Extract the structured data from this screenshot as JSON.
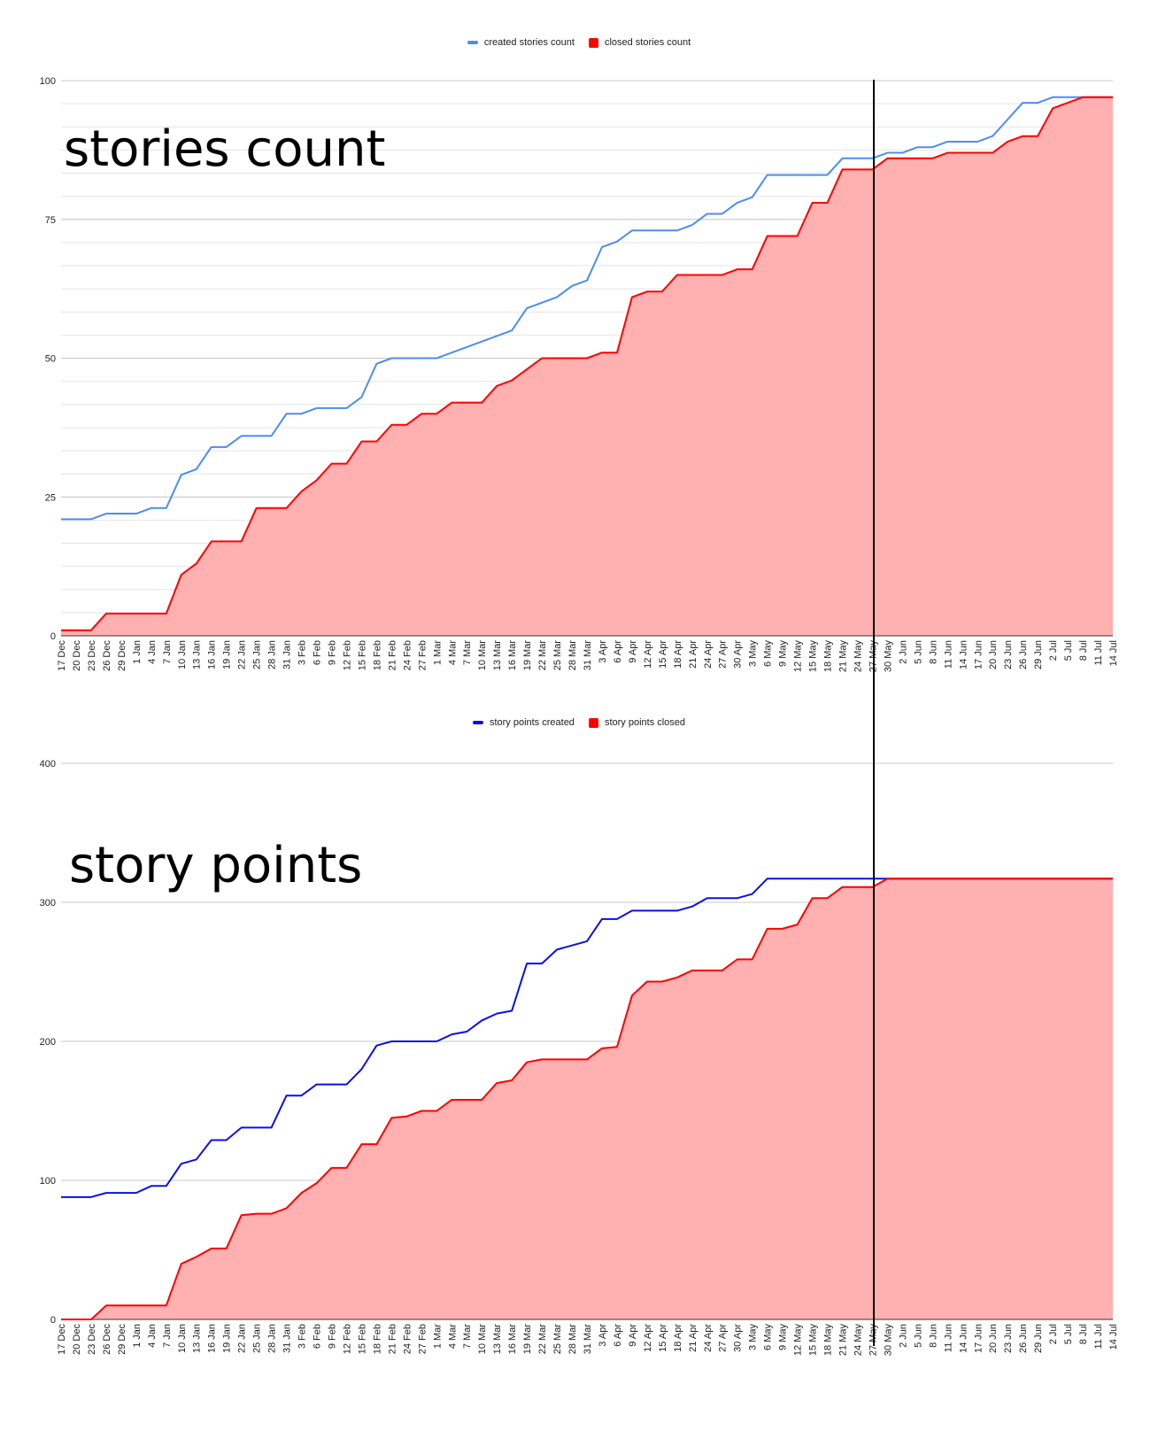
{
  "charts_meta": {
    "cutoff_label": "27 May",
    "colors": {
      "created_top": "#4a8ef0",
      "created_bottom": "#0a10e6",
      "closed_line": "#ff0000",
      "closed_fill": "#ffb0b0",
      "grid_major": "#c8c8c8",
      "grid_minor": "#e4e4e4",
      "cutoff_line": "#000000"
    }
  },
  "top": {
    "overlay_title": "stories count",
    "legend": [
      {
        "label": "created stories count",
        "type": "line",
        "color": "#4a8ef0"
      },
      {
        "label": "closed stories count",
        "type": "box",
        "color": "#ff0000"
      }
    ]
  },
  "bottom": {
    "overlay_title": "story points",
    "legend": [
      {
        "label": "story points created",
        "type": "line",
        "color": "#0a10e6"
      },
      {
        "label": "story points closed",
        "type": "box",
        "color": "#ff0000"
      }
    ]
  },
  "chart_data": [
    {
      "type": "area",
      "title": "stories count",
      "xlabel": "",
      "ylabel": "",
      "ylim": [
        0,
        100
      ],
      "yticks": [
        0,
        25,
        50,
        75,
        100
      ],
      "minor_grid_step": 4.1667,
      "grid": true,
      "legend_position": "top",
      "vertical_marker": "27 May",
      "categories": [
        "17 Dec",
        "20 Dec",
        "23 Dec",
        "26 Dec",
        "29 Dec",
        "1 Jan",
        "4 Jan",
        "7 Jan",
        "10 Jan",
        "13 Jan",
        "16 Jan",
        "19 Jan",
        "22 Jan",
        "25 Jan",
        "28 Jan",
        "31 Jan",
        "3 Feb",
        "6 Feb",
        "9 Feb",
        "12 Feb",
        "15 Feb",
        "18 Feb",
        "21 Feb",
        "24 Feb",
        "27 Feb",
        "1 Mar",
        "4 Mar",
        "7 Mar",
        "10 Mar",
        "13 Mar",
        "16 Mar",
        "19 Mar",
        "22 Mar",
        "25 Mar",
        "28 Mar",
        "31 Mar",
        "3 Apr",
        "6 Apr",
        "9 Apr",
        "12 Apr",
        "15 Apr",
        "18 Apr",
        "21 Apr",
        "24 Apr",
        "27 Apr",
        "30 Apr",
        "3 May",
        "6 May",
        "9 May",
        "12 May",
        "15 May",
        "18 May",
        "21 May",
        "24 May",
        "27 May",
        "30 May",
        "2 Jun",
        "5 Jun",
        "8 Jun",
        "11 Jun",
        "14 Jun",
        "17 Jun",
        "20 Jun",
        "23 Jun",
        "26 Jun",
        "29 Jun",
        "2 Jul",
        "5 Jul",
        "8 Jul",
        "11 Jul",
        "14 Jul"
      ],
      "series": [
        {
          "name": "created stories count",
          "style": "line",
          "values": [
            21,
            21,
            21,
            22,
            22,
            22,
            23,
            23,
            29,
            30,
            34,
            34,
            36,
            36,
            36,
            40,
            40,
            41,
            41,
            41,
            43,
            49,
            50,
            50,
            50,
            50,
            51,
            52,
            53,
            54,
            55,
            59,
            60,
            61,
            63,
            64,
            70,
            71,
            73,
            73,
            73,
            73,
            74,
            76,
            76,
            78,
            79,
            83,
            83,
            83,
            83,
            83,
            86,
            86,
            86,
            87,
            87,
            88,
            88,
            89,
            89,
            89,
            90,
            93,
            96,
            96,
            97,
            97,
            97,
            97,
            97
          ]
        },
        {
          "name": "closed stories count",
          "style": "area",
          "values": [
            1,
            1,
            1,
            4,
            4,
            4,
            4,
            4,
            11,
            13,
            17,
            17,
            17,
            23,
            23,
            23,
            26,
            28,
            31,
            31,
            35,
            35,
            38,
            38,
            40,
            40,
            42,
            42,
            42,
            45,
            46,
            48,
            50,
            50,
            50,
            50,
            51,
            51,
            61,
            62,
            62,
            65,
            65,
            65,
            65,
            66,
            66,
            72,
            72,
            72,
            78,
            78,
            84,
            84,
            84,
            86,
            86,
            86,
            86,
            87,
            87,
            87,
            87,
            89,
            90,
            90,
            95,
            96,
            97,
            97,
            97
          ]
        }
      ]
    },
    {
      "type": "area",
      "title": "story points",
      "xlabel": "",
      "ylabel": "",
      "ylim": [
        0,
        400
      ],
      "yticks": [
        0,
        100,
        200,
        300,
        400
      ],
      "grid": true,
      "legend_position": "top",
      "vertical_marker": "27 May",
      "categories": [
        "17 Dec",
        "20 Dec",
        "23 Dec",
        "26 Dec",
        "29 Dec",
        "1 Jan",
        "4 Jan",
        "7 Jan",
        "10 Jan",
        "13 Jan",
        "16 Jan",
        "19 Jan",
        "22 Jan",
        "25 Jan",
        "28 Jan",
        "31 Jan",
        "3 Feb",
        "6 Feb",
        "9 Feb",
        "12 Feb",
        "15 Feb",
        "18 Feb",
        "21 Feb",
        "24 Feb",
        "27 Feb",
        "1 Mar",
        "4 Mar",
        "7 Mar",
        "10 Mar",
        "13 Mar",
        "16 Mar",
        "19 Mar",
        "22 Mar",
        "25 Mar",
        "28 Mar",
        "31 Mar",
        "3 Apr",
        "6 Apr",
        "9 Apr",
        "12 Apr",
        "15 Apr",
        "18 Apr",
        "21 Apr",
        "24 Apr",
        "27 Apr",
        "30 Apr",
        "3 May",
        "6 May",
        "9 May",
        "12 May",
        "15 May",
        "18 May",
        "21 May",
        "24 May",
        "27 May",
        "30 May",
        "2 Jun",
        "5 Jun",
        "8 Jun",
        "11 Jun",
        "14 Jun",
        "17 Jun",
        "20 Jun",
        "23 Jun",
        "26 Jun",
        "29 Jun",
        "2 Jul",
        "5 Jul",
        "8 Jul",
        "11 Jul",
        "14 Jul"
      ],
      "series": [
        {
          "name": "story points created",
          "style": "line",
          "values": [
            88,
            88,
            88,
            91,
            91,
            91,
            96,
            96,
            112,
            115,
            129,
            129,
            138,
            138,
            138,
            161,
            161,
            169,
            169,
            169,
            180,
            197,
            200,
            200,
            200,
            200,
            205,
            207,
            215,
            220,
            222,
            256,
            256,
            266,
            269,
            272,
            288,
            288,
            294,
            294,
            294,
            294,
            297,
            303,
            303,
            303,
            306,
            317,
            317,
            317,
            317,
            317,
            317,
            317,
            317,
            317,
            317,
            317,
            317,
            317,
            317,
            317,
            317,
            317,
            317,
            317,
            317,
            317,
            317,
            317,
            317
          ]
        },
        {
          "name": "story points closed",
          "style": "area",
          "values": [
            0,
            0,
            0,
            10,
            10,
            10,
            10,
            10,
            40,
            45,
            51,
            51,
            75,
            76,
            76,
            80,
            91,
            98,
            109,
            109,
            126,
            126,
            145,
            146,
            150,
            150,
            158,
            158,
            158,
            170,
            172,
            185,
            187,
            187,
            187,
            187,
            195,
            196,
            233,
            243,
            243,
            246,
            251,
            251,
            251,
            259,
            259,
            281,
            281,
            284,
            303,
            303,
            311,
            311,
            311,
            317,
            317,
            317,
            317,
            317,
            317,
            317,
            317,
            317,
            317,
            317,
            317,
            317,
            317,
            317,
            317
          ]
        }
      ]
    }
  ]
}
